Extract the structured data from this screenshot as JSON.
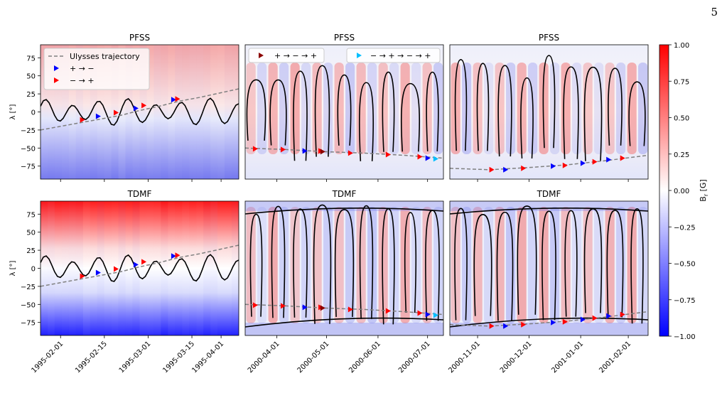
{
  "page_number": "5",
  "colors": {
    "positive": "#ff0000",
    "neutral": "#ffffff",
    "negative": "#0000ff",
    "trajectory": "#808080",
    "contour": "#000000",
    "marker_pm": "#0000ff",
    "marker_mp": "#ff0000",
    "marker_dark": "#8b0000",
    "marker_cyan": "#00bfff"
  },
  "legend_left": {
    "trajectory": "Ulysses trajectory",
    "pm": "+ → −",
    "mp": "− → +"
  },
  "legend_mid_a": "+ → − → +",
  "legend_mid_b": "− → + → − → +",
  "chart_data": [
    {
      "type": "heatmap",
      "title": "PFSS",
      "ylabel": "λ [°]",
      "ylim": [
        -93,
        93
      ],
      "yticks": [
        -75,
        -50,
        -25,
        0,
        25,
        50,
        75
      ],
      "trajectory": {
        "x": [
          0,
          0.1,
          0.2,
          0.3,
          0.4,
          0.5,
          0.6,
          0.7,
          0.8,
          0.9,
          1.0
        ],
        "y": [
          -25,
          -20,
          -15,
          -10,
          -5,
          2,
          8,
          15,
          20,
          26,
          32
        ]
      },
      "markers_pm": [
        [
          0.29,
          -6
        ],
        [
          0.48,
          5
        ],
        [
          0.67,
          17
        ]
      ],
      "markers_mp": [
        [
          0.21,
          -11
        ],
        [
          0.38,
          -1
        ],
        [
          0.52,
          9
        ],
        [
          0.69,
          18
        ]
      ]
    },
    {
      "type": "heatmap",
      "title": "PFSS",
      "ylim": [
        -93,
        93
      ],
      "trajectory": {
        "x": [
          0,
          0.2,
          0.4,
          0.6,
          0.8,
          1.0
        ],
        "y": [
          -50,
          -52,
          -55,
          -57,
          -60,
          -64
        ]
      },
      "markers_mp": [
        [
          0.05,
          -51
        ],
        [
          0.19,
          -52
        ],
        [
          0.38,
          -54
        ],
        [
          0.53,
          -57
        ],
        [
          0.72,
          -59
        ],
        [
          0.88,
          -62
        ]
      ],
      "markers_pm": [
        [
          0.3,
          -54
        ],
        [
          0.92,
          -64
        ]
      ],
      "markers_dark": [
        [
          0.39,
          -55
        ]
      ],
      "markers_cyan": [
        [
          0.96,
          -65
        ]
      ]
    },
    {
      "type": "heatmap",
      "title": "PFSS",
      "ylim": [
        -93,
        93
      ],
      "trajectory": {
        "x": [
          0,
          0.2,
          0.4,
          0.6,
          0.8,
          1.0
        ],
        "y": [
          -78,
          -80,
          -77,
          -73,
          -67,
          -60
        ]
      },
      "markers_mp": [
        [
          0.21,
          -80
        ],
        [
          0.37,
          -78
        ],
        [
          0.58,
          -74
        ],
        [
          0.73,
          -69
        ],
        [
          0.87,
          -64
        ]
      ],
      "markers_pm": [
        [
          0.28,
          -80
        ],
        [
          0.52,
          -75
        ],
        [
          0.67,
          -71
        ],
        [
          0.8,
          -66
        ]
      ]
    },
    {
      "type": "heatmap",
      "title": "TDMF",
      "ylabel": "λ [°]",
      "ylim": [
        -93,
        93
      ],
      "yticks": [
        -75,
        -50,
        -25,
        0,
        25,
        50,
        75
      ],
      "xticks": [
        "1995-02-01",
        "1995-02-15",
        "1995-03-01",
        "1995-03-15",
        "1995-04-01"
      ],
      "trajectory": {
        "x": [
          0,
          0.1,
          0.2,
          0.3,
          0.4,
          0.5,
          0.6,
          0.7,
          0.8,
          0.9,
          1.0
        ],
        "y": [
          -25,
          -20,
          -15,
          -10,
          -5,
          2,
          8,
          15,
          20,
          26,
          32
        ]
      },
      "markers_pm": [
        [
          0.29,
          -6
        ],
        [
          0.48,
          5
        ],
        [
          0.67,
          17
        ]
      ],
      "markers_mp": [
        [
          0.21,
          -11
        ],
        [
          0.38,
          -1
        ],
        [
          0.52,
          9
        ],
        [
          0.69,
          18
        ]
      ]
    },
    {
      "type": "heatmap",
      "title": "TDMF",
      "ylim": [
        -93,
        93
      ],
      "xticks": [
        "2000-04-01",
        "2000-05-01",
        "2000-06-01",
        "2000-07-01"
      ],
      "trajectory": {
        "x": [
          0,
          0.2,
          0.4,
          0.6,
          0.8,
          1.0
        ],
        "y": [
          -50,
          -52,
          -55,
          -57,
          -60,
          -64
        ]
      },
      "markers_mp": [
        [
          0.05,
          -51
        ],
        [
          0.19,
          -52
        ],
        [
          0.38,
          -54
        ],
        [
          0.53,
          -57
        ],
        [
          0.72,
          -59
        ],
        [
          0.88,
          -62
        ]
      ],
      "markers_pm": [
        [
          0.3,
          -54
        ],
        [
          0.92,
          -64
        ]
      ],
      "markers_dark": [
        [
          0.39,
          -55
        ]
      ],
      "markers_cyan": [
        [
          0.96,
          -65
        ]
      ]
    },
    {
      "type": "heatmap",
      "title": "TDMF",
      "ylim": [
        -93,
        93
      ],
      "xticks": [
        "2000-11-01",
        "2000-12-01",
        "2001-01-01",
        "2001-02-01"
      ],
      "trajectory": {
        "x": [
          0,
          0.2,
          0.4,
          0.6,
          0.8,
          1.0
        ],
        "y": [
          -78,
          -80,
          -77,
          -73,
          -67,
          -60
        ]
      },
      "markers_mp": [
        [
          0.21,
          -80
        ],
        [
          0.37,
          -78
        ],
        [
          0.58,
          -74
        ],
        [
          0.73,
          -69
        ],
        [
          0.87,
          -64
        ]
      ],
      "markers_pm": [
        [
          0.28,
          -80
        ],
        [
          0.52,
          -75
        ],
        [
          0.67,
          -71
        ],
        [
          0.8,
          -66
        ]
      ]
    }
  ],
  "colorbar": {
    "label": "B_r [G]",
    "range": [
      -1.0,
      1.0
    ],
    "ticks": [
      "1.00",
      "0.75",
      "0.50",
      "0.25",
      "0.00",
      "−0.25",
      "−0.50",
      "−0.75",
      "−1.00"
    ]
  }
}
